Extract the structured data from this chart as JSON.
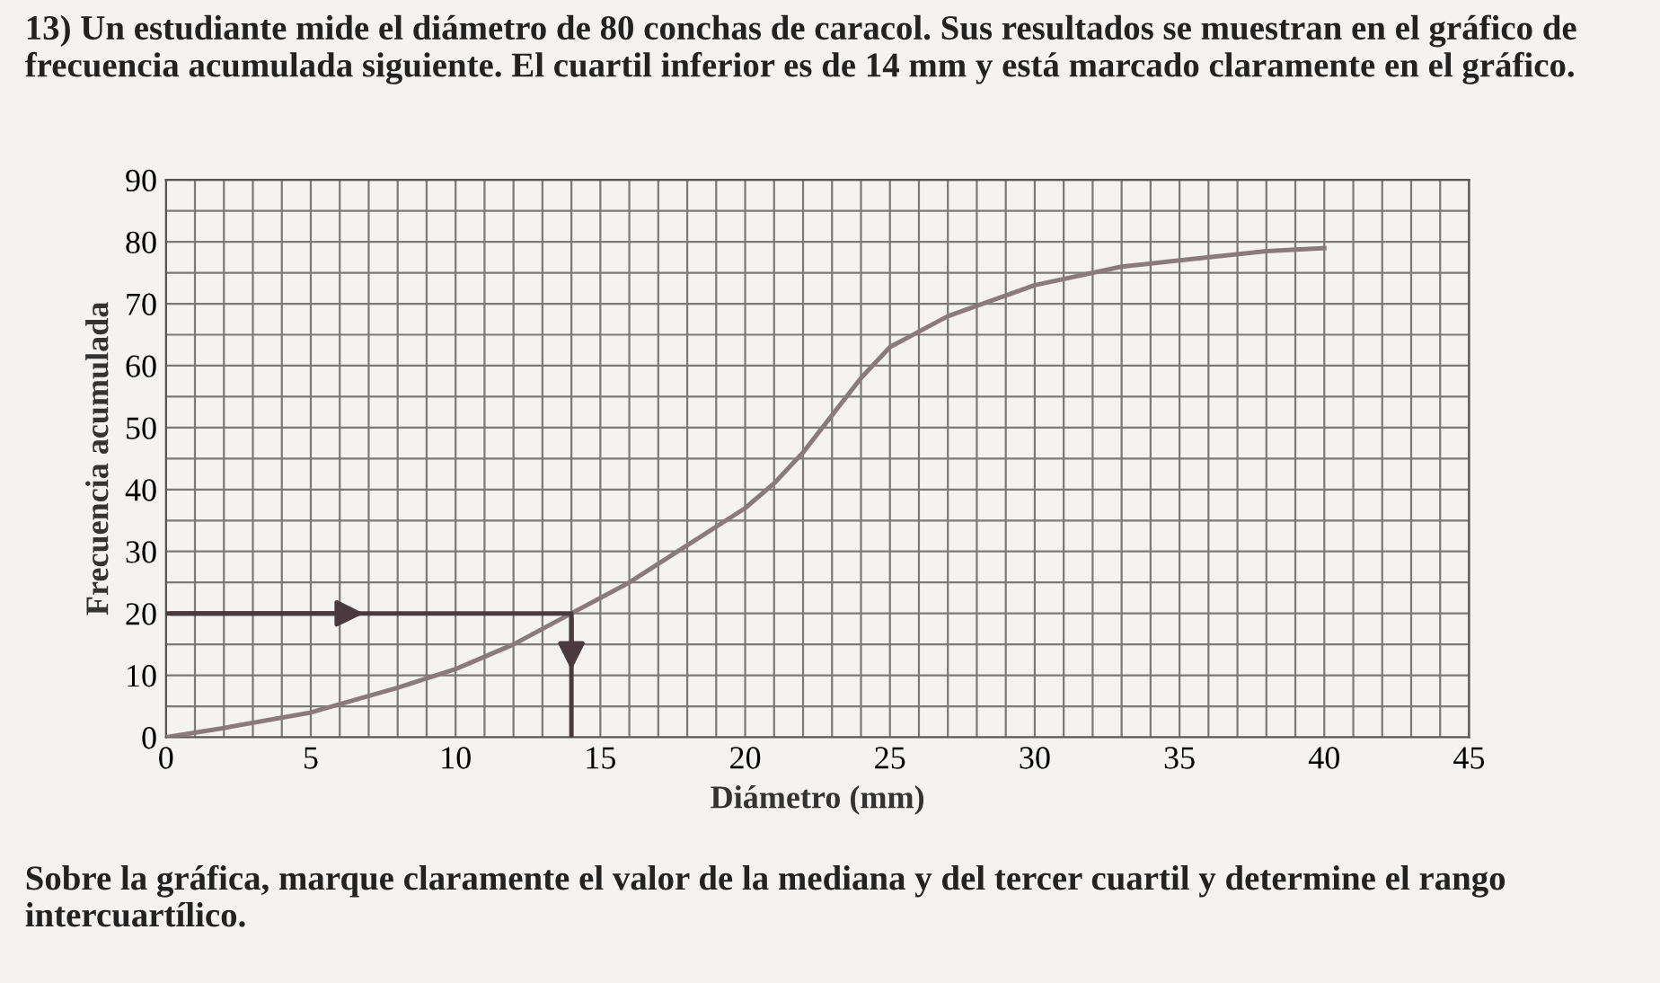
{
  "chart_data": {
    "type": "line",
    "title": "13) Un estudiante mide el diámetro de 80 conchas de caracol. Sus resultados se muestran en el gráfico de frecuencia acumulada siguiente. El cuartil inferior es de 14 mm y está marcado claramente en el gráfico.",
    "xlabel": "Diámetro (mm)",
    "ylabel": "Frecuencia acumulada",
    "annotations": [
      "Sobre la gráfica, marque claramente el valor de la mediana y del tercer cuartil y determine el rango intercuartílico."
    ],
    "series": [
      {
        "color": "#8a7a7e",
        "x": [
          0,
          2,
          5,
          8,
          10,
          12,
          14,
          16,
          18,
          20,
          21,
          22,
          23,
          24,
          25,
          27,
          30,
          33,
          35,
          38,
          40
        ],
        "values": [
          0,
          1.5,
          4,
          8,
          11,
          15,
          20,
          25,
          31,
          37,
          41,
          46,
          52,
          58,
          63,
          68,
          73,
          76,
          77,
          78.5,
          79
        ]
      },
      {
        "color": "#4a3a40",
        "x": [
          0,
          14,
          14
        ],
        "values": [
          20,
          20,
          0
        ]
      }
    ],
    "xlim": [
      0,
      45
    ],
    "ylim": [
      0,
      90
    ],
    "xticks": [
      0,
      {
        "value": 1,
        "label": null
      },
      {
        "value": 2,
        "label": null
      },
      {
        "value": 3,
        "label": null
      },
      {
        "value": 4,
        "label": null
      },
      5,
      {
        "value": 6,
        "label": null
      },
      {
        "value": 7,
        "label": null
      },
      {
        "value": 8,
        "label": null
      },
      {
        "value": 9,
        "label": null
      },
      10,
      {
        "value": 11,
        "label": null
      },
      {
        "value": 12,
        "label": null
      },
      {
        "value": 13,
        "label": null
      },
      {
        "value": 14,
        "label": null
      },
      15,
      {
        "value": 16,
        "label": null
      },
      {
        "value": 17,
        "label": null
      },
      {
        "value": 18,
        "label": null
      },
      {
        "value": 19,
        "label": null
      },
      20,
      {
        "value": 21,
        "label": null
      },
      {
        "value": 22,
        "label": null
      },
      {
        "value": 23,
        "label": null
      },
      {
        "value": 24,
        "label": null
      },
      25,
      {
        "value": 26,
        "label": null
      },
      {
        "value": 27,
        "label": null
      },
      {
        "value": 28,
        "label": null
      },
      {
        "value": 29,
        "label": null
      },
      30,
      {
        "value": 31,
        "label": null
      },
      {
        "value": 32,
        "label": null
      },
      {
        "value": 33,
        "label": null
      },
      {
        "value": 34,
        "label": null
      },
      35,
      {
        "value": 36,
        "label": null
      },
      {
        "value": 37,
        "label": null
      },
      {
        "value": 38,
        "label": null
      },
      {
        "value": 39,
        "label": null
      },
      40,
      {
        "value": 41,
        "label": null
      },
      {
        "value": 42,
        "label": null
      },
      {
        "value": 43,
        "label": null
      },
      {
        "value": 44,
        "label": null
      },
      45
    ],
    "yticks": [
      0,
      {
        "value": 5,
        "label": null
      },
      10,
      {
        "value": 15,
        "label": null
      },
      20,
      {
        "value": 25,
        "label": null
      },
      30,
      {
        "value": 35,
        "label": null
      },
      40,
      {
        "value": 45,
        "label": null
      },
      50,
      {
        "value": 55,
        "label": null
      },
      60,
      {
        "value": 65,
        "label": null
      },
      70,
      {
        "value": 75,
        "label": null
      },
      80,
      {
        "value": 85,
        "label": null
      },
      90
    ],
    "grid": true,
    "line_style": "solid",
    "marker": "none"
  }
}
